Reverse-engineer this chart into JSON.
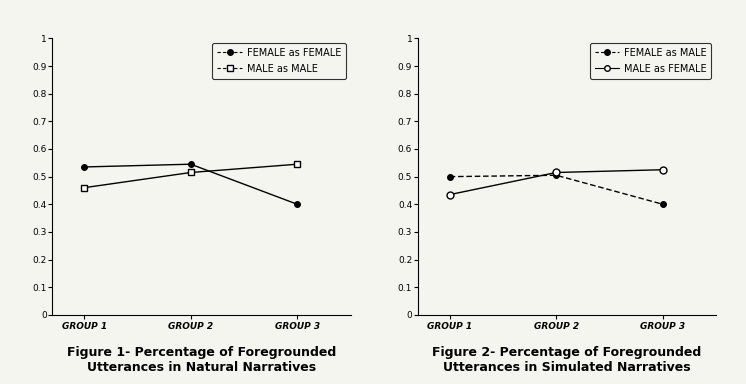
{
  "fig1": {
    "title": "Figure 1- Percentage of Foregrounded\nUtterances in Natural Narratives",
    "legend": [
      "FEMALE as FEMALE",
      "MALE as MALE"
    ],
    "x_labels": [
      "GROUP 1",
      "GROUP 2",
      "GROUP 3"
    ],
    "series1_values": [
      0.535,
      0.545,
      0.4
    ],
    "series2_values": [
      0.46,
      0.515,
      0.545
    ],
    "ylim": [
      0,
      1.0
    ],
    "yticks": [
      0,
      0.1,
      0.2,
      0.3,
      0.4,
      0.5,
      0.6,
      0.7,
      0.8,
      0.9,
      1.0
    ],
    "ytick_labels": [
      "0",
      "0.1",
      "0.2",
      "0.3",
      "0.4",
      "0.5",
      "0.6",
      "0.7",
      "0.8",
      "0.9",
      "1"
    ]
  },
  "fig2": {
    "title": "Figure 2- Percentage of Foregrounded\nUtterances in Simulated Narratives",
    "legend": [
      "FEMALE as MALE",
      "MALE as FEMALE"
    ],
    "x_labels": [
      "GROUP 1",
      "GROUP 2",
      "GROUP 3"
    ],
    "series1_values": [
      0.5,
      0.505,
      0.4
    ],
    "series2_values": [
      0.435,
      0.515,
      0.525
    ],
    "ylim": [
      0,
      1.0
    ],
    "yticks": [
      0,
      0.1,
      0.2,
      0.3,
      0.4,
      0.5,
      0.6,
      0.7,
      0.8,
      0.9,
      1.0
    ],
    "ytick_labels": [
      "0",
      "0.1",
      "0.2",
      "0.3",
      "0.4",
      "0.5",
      "0.6",
      "0.7",
      "0.8",
      "0.9",
      "1"
    ]
  },
  "line_color": "#000000",
  "bg_color": "#f5f5f0",
  "title_fontsize": 9,
  "tick_fontsize": 6.5,
  "legend_fontsize": 7,
  "xlabel_fontsize": 6.5
}
